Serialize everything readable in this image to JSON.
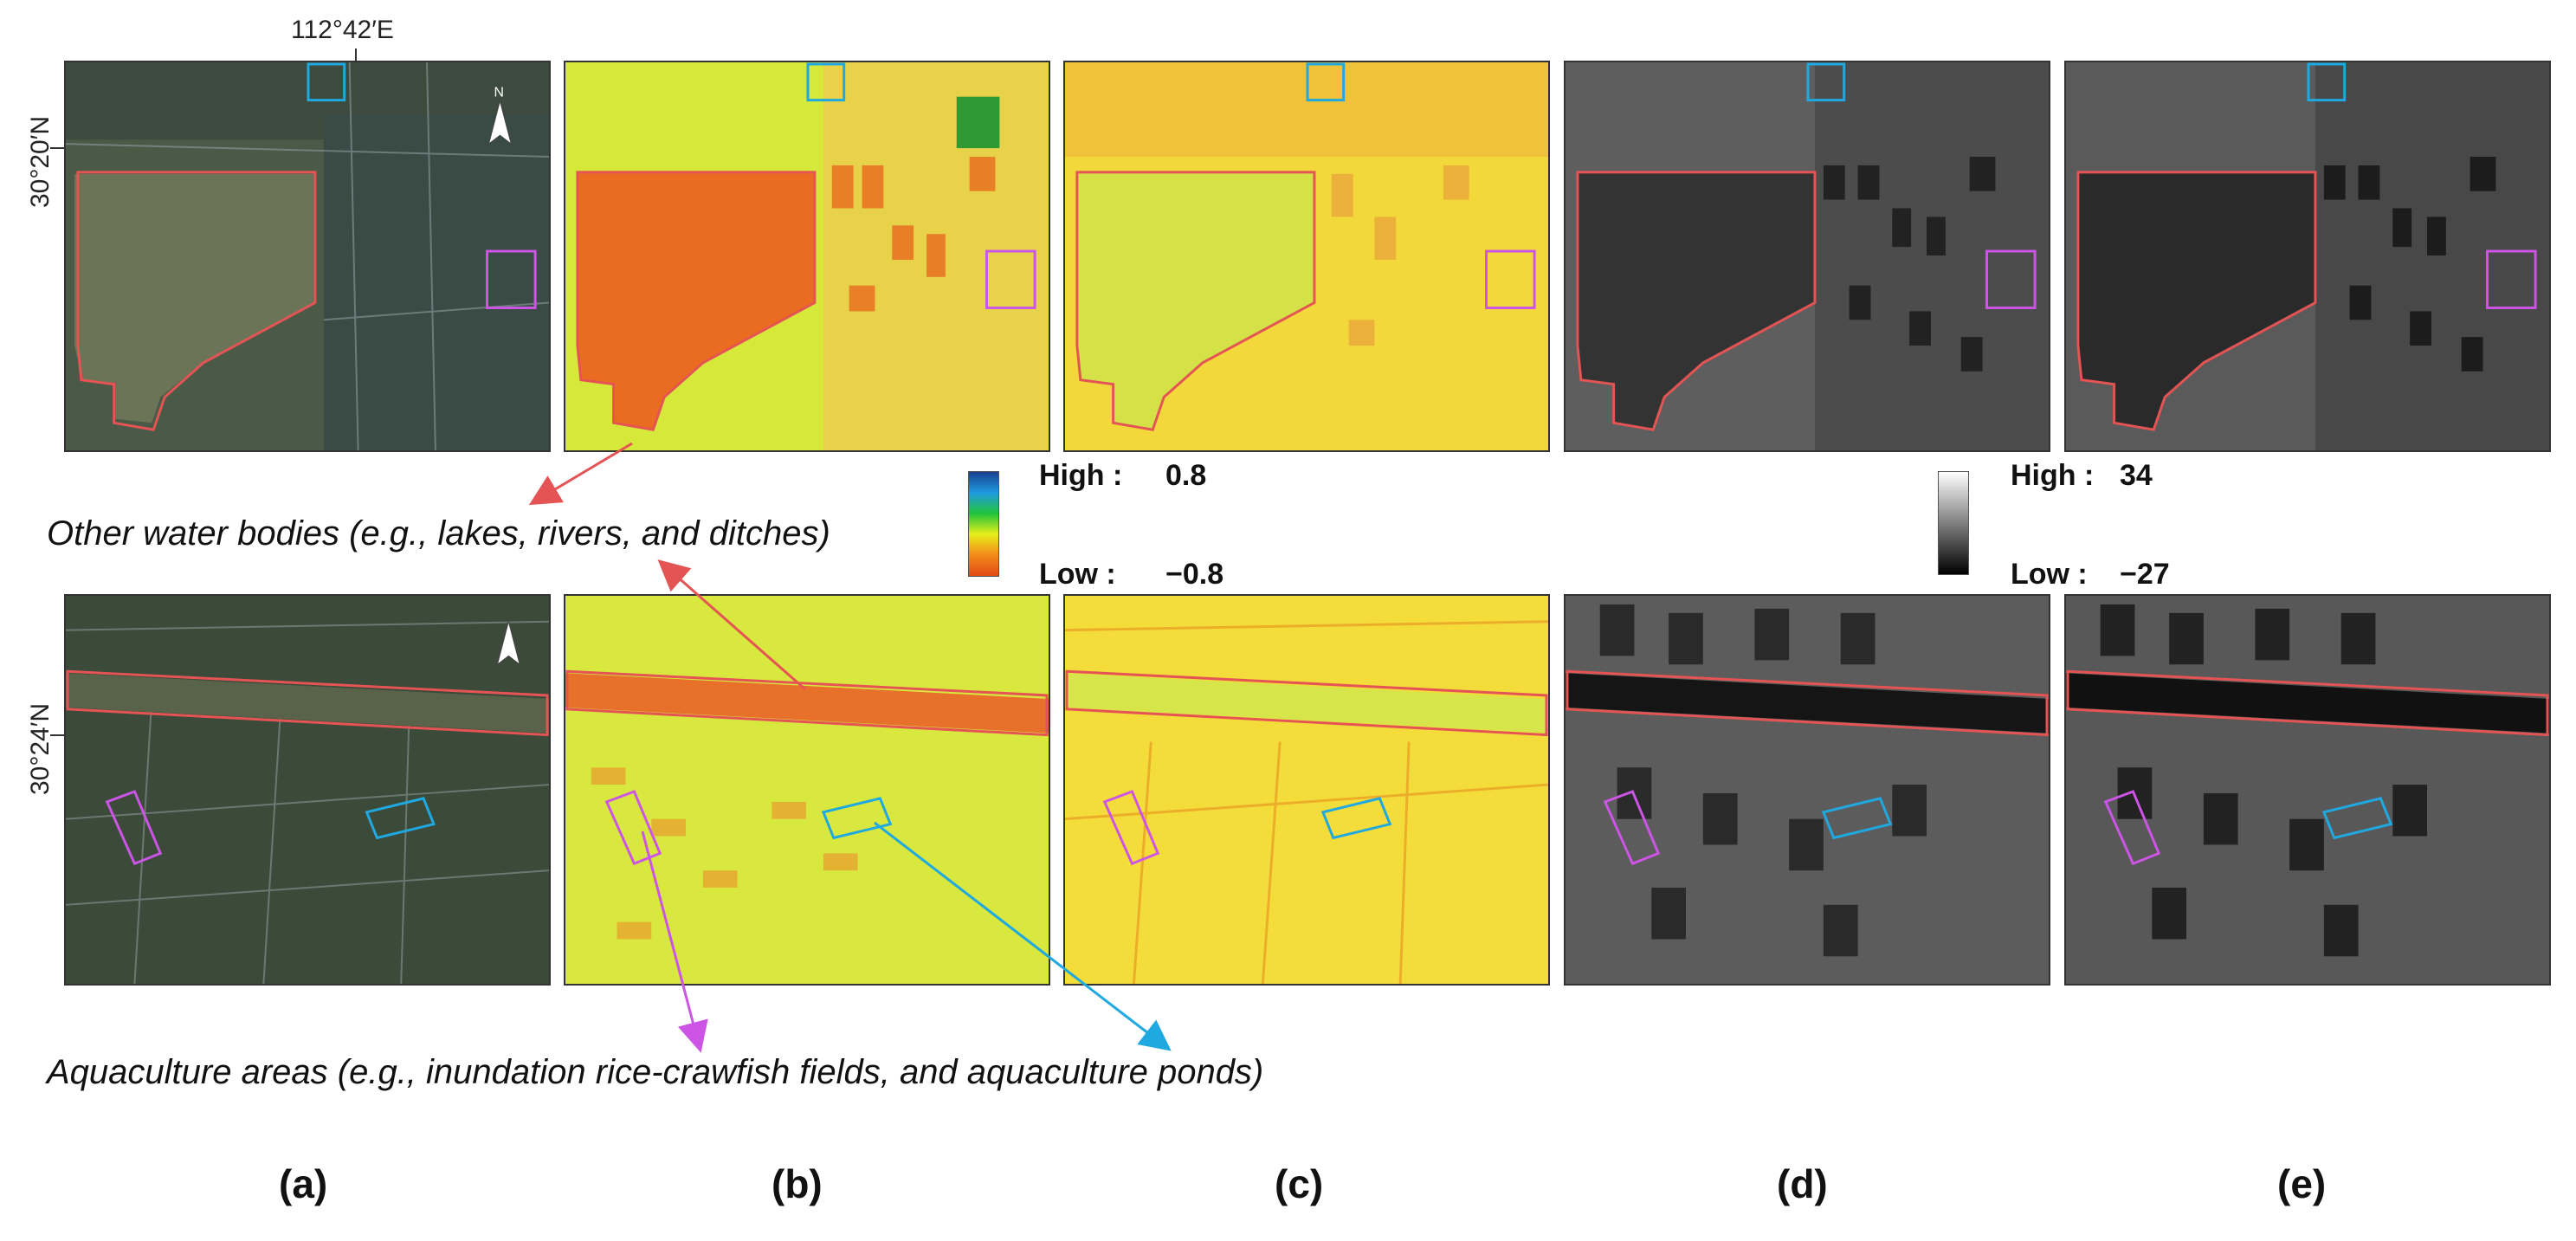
{
  "coordinates": {
    "lon_top": "112°42′E",
    "lat_top": "30°20′N",
    "lat_bottom": "30°24′N"
  },
  "north_arrow_label": "N",
  "legend_ndvi": {
    "high_label": "High :",
    "high_value": "0.8",
    "low_label": "Low :",
    "low_value": "−0.8",
    "colors": [
      "#1a3f8f",
      "#1e9be0",
      "#21c43a",
      "#e8ee1a",
      "#f28a1a",
      "#e24a16"
    ]
  },
  "legend_sar": {
    "high_label": "High :",
    "high_value": "34",
    "low_label": "Low :",
    "low_value": "−27",
    "colors": [
      "#ffffff",
      "#000000"
    ]
  },
  "captions": {
    "water": "Other water bodies (e.g., lakes, rivers, and ditches)",
    "aquaculture": "Aquaculture areas (e.g., inundation rice-crawfish fields, and aquaculture ponds)"
  },
  "panel_labels": [
    "(a)",
    "(b)",
    "(c)",
    "(d)",
    "(e)"
  ],
  "box_colors": {
    "water": "#e45454",
    "rice_crawfish": "#cc55e6",
    "pond": "#1fa9e0"
  }
}
